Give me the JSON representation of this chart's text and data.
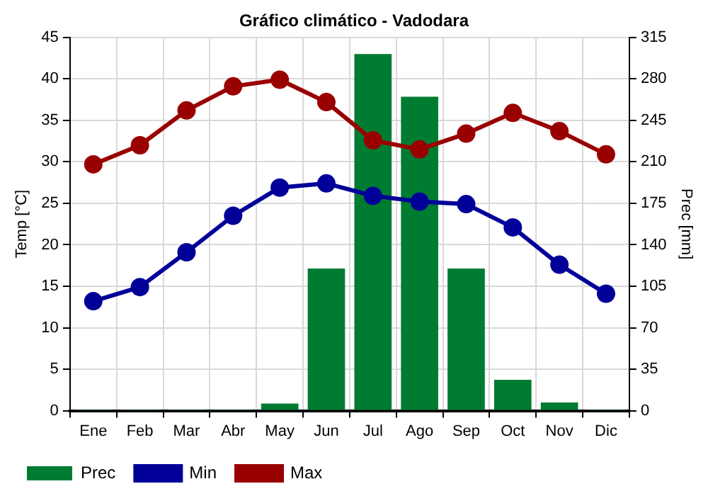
{
  "chart_data": {
    "type": "bar",
    "title": "Gráfico climático - Vadodara",
    "ylabel": "Temp [°C]",
    "y2label": "Prec [mm]",
    "categories": [
      "Ene",
      "Feb",
      "Mar",
      "Abr",
      "May",
      "Jun",
      "Jul",
      "Ago",
      "Sep",
      "Oct",
      "Nov",
      "Dic"
    ],
    "series": [
      {
        "name": "Prec",
        "axis": "y2",
        "color": "#007c32",
        "values": [
          1,
          1,
          1,
          1,
          6,
          120,
          301,
          265,
          120,
          26,
          7,
          1
        ]
      },
      {
        "name": "Min",
        "type": "line",
        "color": "#000099",
        "values": [
          13.2,
          14.9,
          19.1,
          23.5,
          26.9,
          27.4,
          25.9,
          25.2,
          24.9,
          22.1,
          17.6,
          14.1
        ]
      },
      {
        "name": "Max",
        "type": "line",
        "color": "#990000",
        "values": [
          29.7,
          32,
          36.2,
          39.1,
          39.9,
          37.2,
          32.6,
          31.5,
          33.4,
          35.9,
          33.7,
          30.9
        ]
      }
    ],
    "ylim": [
      0,
      45
    ],
    "yticks": [
      0,
      5,
      10,
      15,
      20,
      25,
      30,
      35,
      40,
      45
    ],
    "y2lim": [
      0,
      315
    ],
    "y2ticks": [
      0,
      35,
      70,
      105,
      140,
      175,
      210,
      245,
      280,
      315
    ],
    "grid": true,
    "legend": "bottom left",
    "marker": "circle",
    "line_style": "solid"
  }
}
